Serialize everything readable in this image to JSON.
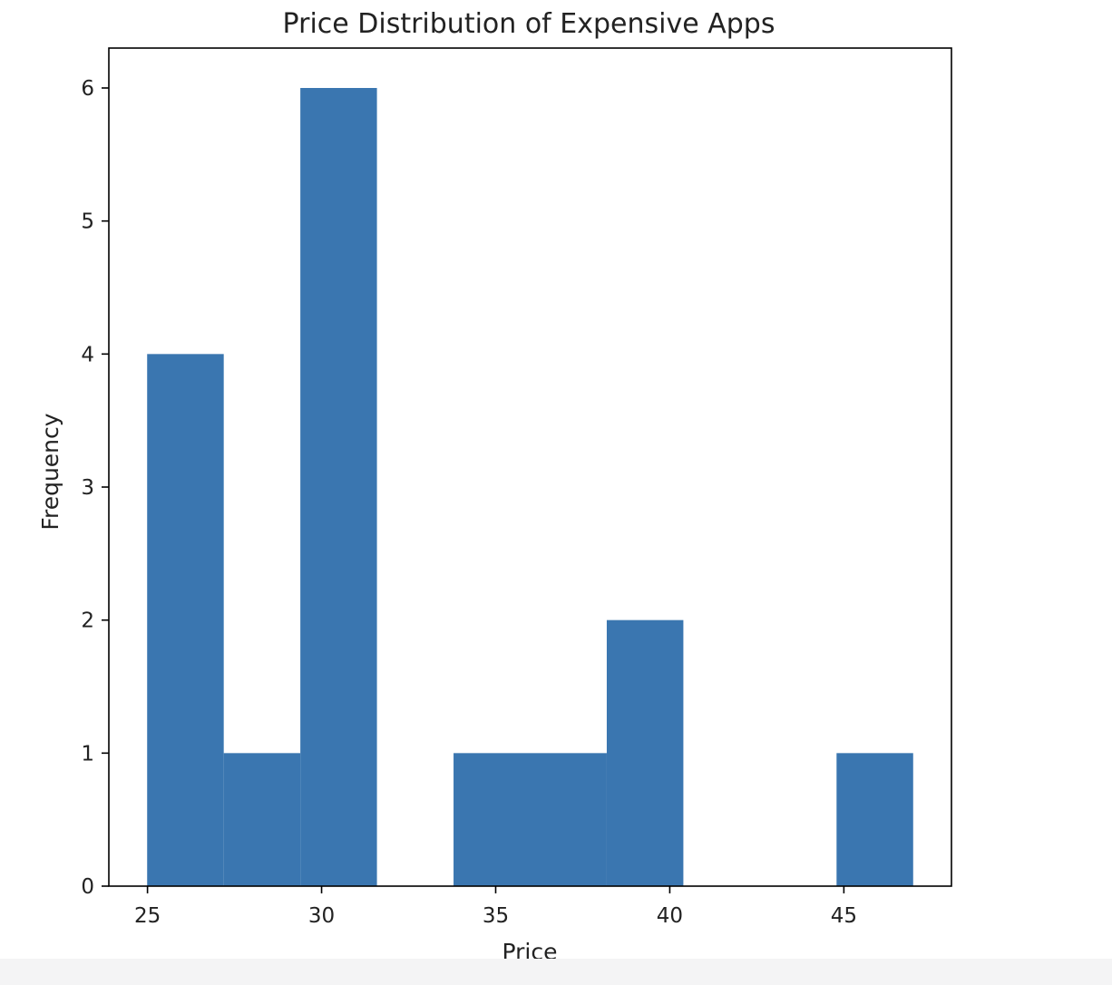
{
  "chart_data": {
    "type": "bar",
    "subtype": "histogram",
    "title": "Price Distribution of Expensive Apps",
    "xlabel": "Price",
    "ylabel": "Frequency",
    "bins": [
      {
        "start": 24.99,
        "end": 27.19,
        "count": 4
      },
      {
        "start": 27.19,
        "end": 29.39,
        "count": 1
      },
      {
        "start": 29.39,
        "end": 31.59,
        "count": 6
      },
      {
        "start": 31.59,
        "end": 33.79,
        "count": 0
      },
      {
        "start": 33.79,
        "end": 35.99,
        "count": 1
      },
      {
        "start": 35.99,
        "end": 38.19,
        "count": 1
      },
      {
        "start": 38.19,
        "end": 40.39,
        "count": 2
      },
      {
        "start": 40.39,
        "end": 42.59,
        "count": 0
      },
      {
        "start": 42.59,
        "end": 44.79,
        "count": 0
      },
      {
        "start": 44.79,
        "end": 46.99,
        "count": 1
      }
    ],
    "xticks": [
      25,
      30,
      35,
      40,
      45
    ],
    "yticks": [
      0,
      1,
      2,
      3,
      4,
      5,
      6
    ],
    "xlim": [
      23.89,
      48.09
    ],
    "ylim": [
      0,
      6.3
    ],
    "grid": false,
    "bar_color": "#3a76b0"
  }
}
